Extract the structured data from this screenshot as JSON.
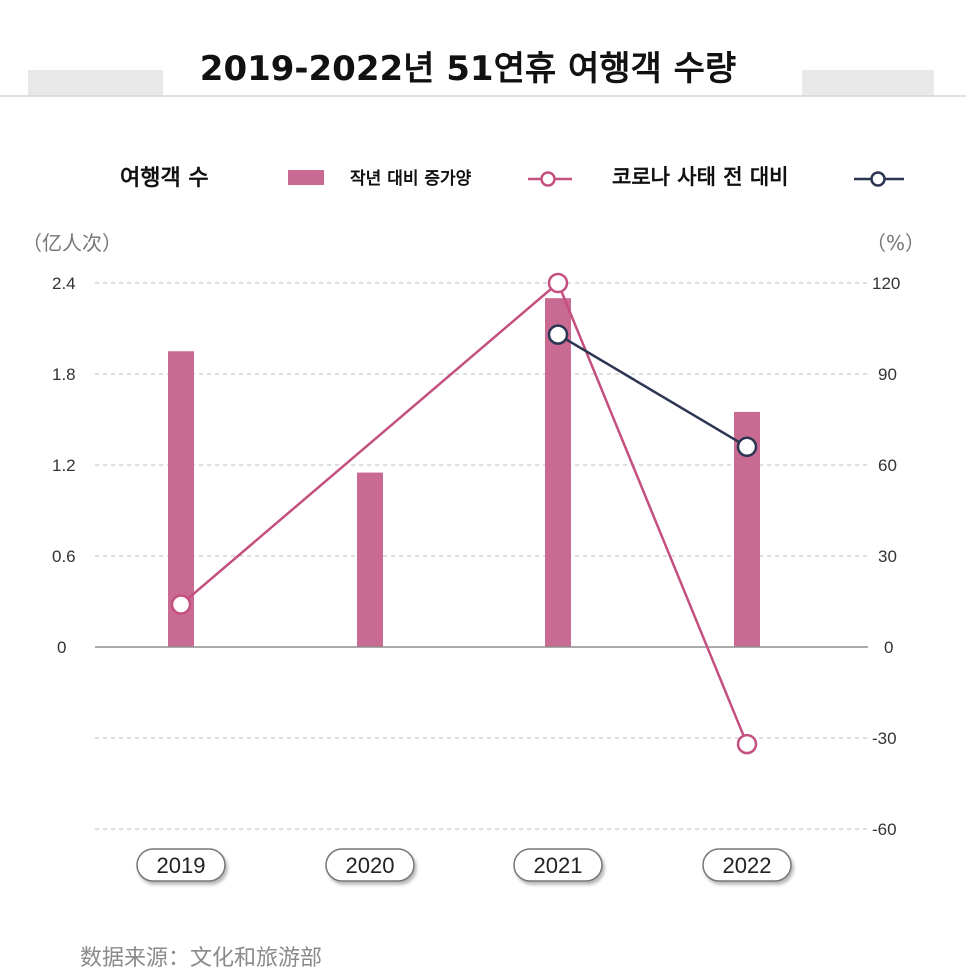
{
  "chart_data": {
    "type": "bar",
    "title": "2019-2022년 51연휴 여행객 수량",
    "categories": [
      "2019",
      "2020",
      "2021",
      "2022"
    ],
    "series": [
      {
        "name": "여행객 수",
        "kind": "bar",
        "axis": "left",
        "color": "#c96a92",
        "values": [
          1.95,
          1.15,
          2.3,
          1.55
        ]
      },
      {
        "name": "작년 대비 증가양",
        "kind": "line",
        "axis": "right",
        "color": "#c4507f",
        "values": [
          14,
          null,
          120,
          -32
        ]
      },
      {
        "name": "코로나 사태 전 대비",
        "kind": "line",
        "axis": "right",
        "color": "#2c3552",
        "values": [
          null,
          null,
          103,
          66
        ]
      }
    ],
    "y_left": {
      "unit": "（亿人次）",
      "ylim": [
        -1.2,
        2.4
      ],
      "ticks": [
        "2.4",
        "1.8",
        "1.2",
        "0.6",
        "0"
      ]
    },
    "y_right": {
      "unit": "（%）",
      "ylim": [
        -60,
        120
      ],
      "ticks": [
        "120",
        "90",
        "60",
        "30",
        "0",
        "-30",
        "-60"
      ]
    },
    "grid": true,
    "legend_position": "top",
    "source": "数据来源：文化和旅游部"
  }
}
